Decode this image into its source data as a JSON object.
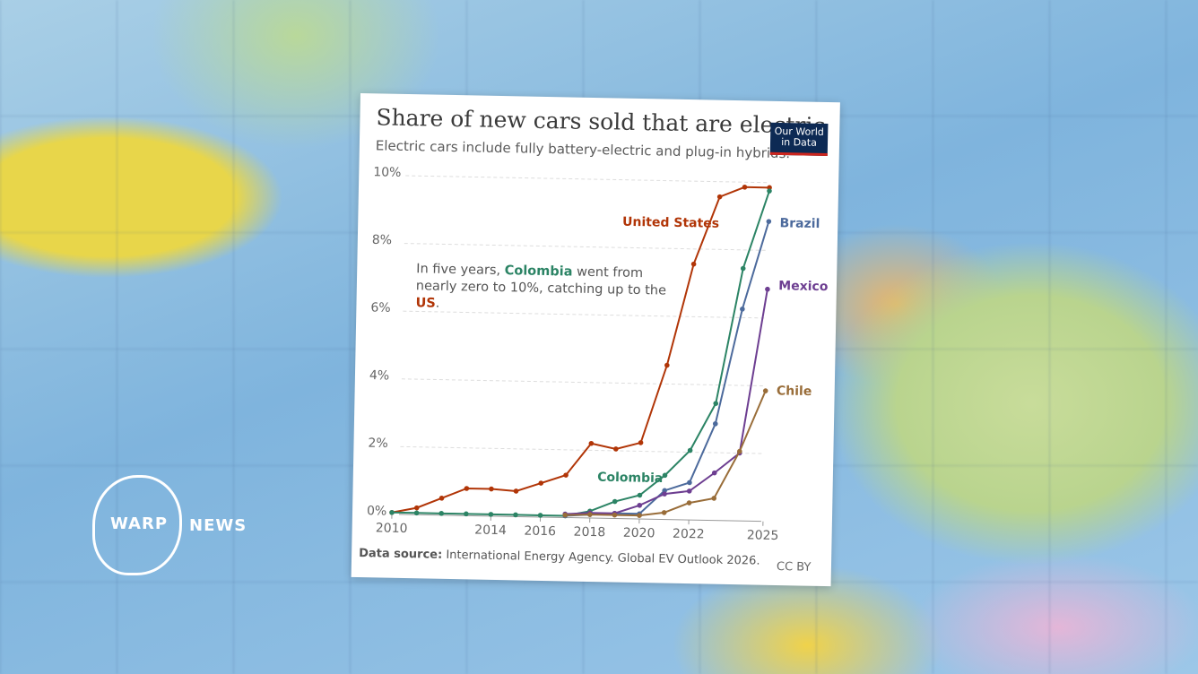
{
  "brand": {
    "left": "WARP",
    "right": "NEWS"
  },
  "chart_data": {
    "type": "line",
    "title": "Share of new cars sold that are electric",
    "subtitle": "Electric cars include fully battery-electric and plug-in hybrids.",
    "logo": [
      "Our World",
      "in Data"
    ],
    "annotation": [
      "In five years, ",
      "Colombia",
      " went from nearly zero to 10%, catching up to the ",
      "US",
      "."
    ],
    "source_label": "Data source:",
    "source": "International Energy Agency. Global EV Outlook 2026.",
    "license": "CC BY",
    "x": [
      2010,
      2011,
      2012,
      2013,
      2014,
      2015,
      2016,
      2017,
      2018,
      2019,
      2020,
      2021,
      2022,
      2023,
      2024,
      2025
    ],
    "xlim": [
      2010,
      2025
    ],
    "xticks": [
      2010,
      2014,
      2016,
      2018,
      2020,
      2022,
      2025
    ],
    "ylim": [
      0,
      10
    ],
    "yticks": [
      {
        "value": 0,
        "label": "0%"
      },
      {
        "value": 2,
        "label": "2%"
      },
      {
        "value": 4,
        "label": "4%"
      },
      {
        "value": 6,
        "label": "6%"
      },
      {
        "value": 8,
        "label": "8%"
      },
      {
        "value": 10,
        "label": "10%"
      }
    ],
    "grid": true,
    "series": [
      {
        "name": "United States",
        "color": "#b13507",
        "values": [
          0.0,
          0.15,
          0.45,
          0.75,
          0.75,
          0.7,
          0.95,
          1.2,
          2.15,
          2.0,
          2.2,
          4.5,
          7.5,
          9.5,
          9.8,
          9.8
        ]
      },
      {
        "name": "Colombia",
        "color": "#2c8465",
        "values": [
          0.0,
          0.0,
          0.0,
          0.0,
          0.0,
          0.0,
          0.0,
          0.0,
          0.15,
          0.45,
          0.65,
          1.25,
          2.0,
          3.4,
          7.4,
          9.7
        ]
      },
      {
        "name": "Brazil",
        "color": "#4c6a9c",
        "values": [
          null,
          null,
          null,
          null,
          null,
          null,
          null,
          0.0,
          0.05,
          0.1,
          0.1,
          0.8,
          1.05,
          2.8,
          6.2,
          8.8
        ]
      },
      {
        "name": "Mexico",
        "color": "#6d3e91",
        "values": [
          null,
          null,
          null,
          null,
          null,
          null,
          null,
          0.05,
          0.1,
          0.1,
          0.35,
          0.7,
          0.8,
          1.35,
          1.95,
          6.8
        ]
      },
      {
        "name": "Chile",
        "color": "#996d39",
        "values": [
          null,
          null,
          null,
          null,
          null,
          null,
          null,
          0.02,
          0.05,
          0.05,
          0.05,
          0.15,
          0.45,
          0.6,
          2.0,
          3.8
        ]
      }
    ]
  }
}
